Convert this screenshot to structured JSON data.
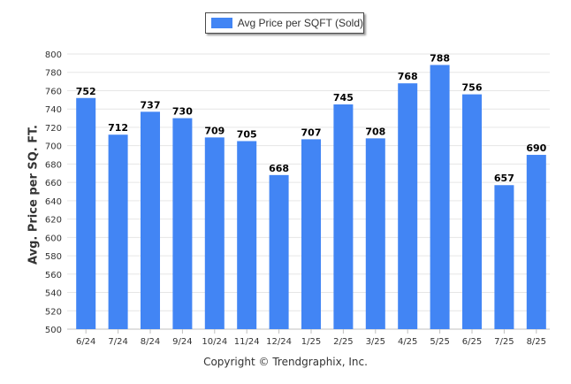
{
  "chart_data": {
    "type": "bar",
    "legend": "Avg Price per SQFT (Sold)",
    "ylabel": "Avg. Price per SQ. FT.",
    "xlabel": "",
    "categories": [
      "6/24",
      "7/24",
      "8/24",
      "9/24",
      "10/24",
      "11/24",
      "12/24",
      "1/25",
      "2/25",
      "3/25",
      "4/25",
      "5/25",
      "6/25",
      "7/25",
      "8/25"
    ],
    "series": [
      {
        "name": "Avg Price per SQFT (Sold)",
        "values": [
          752,
          712,
          737,
          730,
          709,
          705,
          668,
          707,
          745,
          708,
          768,
          788,
          756,
          657,
          690
        ]
      }
    ],
    "ylim": [
      500,
      800
    ],
    "yticks": [
      500,
      520,
      540,
      560,
      580,
      600,
      620,
      640,
      660,
      680,
      700,
      720,
      740,
      760,
      780,
      800
    ],
    "grid": true,
    "legend_position": "top-center",
    "bar_color": "#4285f4"
  },
  "footer": {
    "copyright": "Copyright © Trendgraphix, Inc."
  }
}
